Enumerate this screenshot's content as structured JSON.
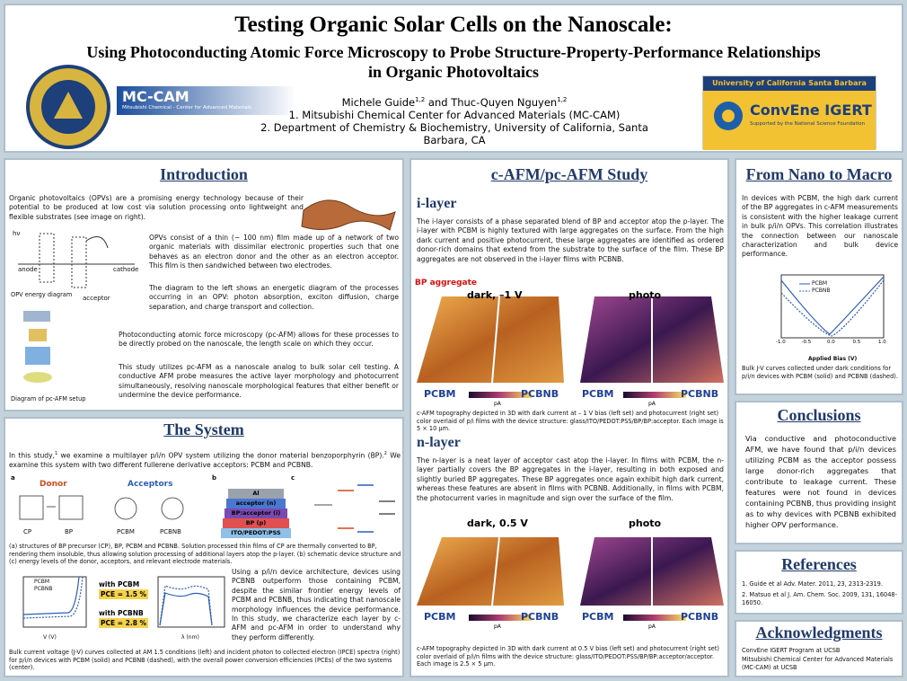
{
  "header": {
    "title": "Testing Organic Solar Cells on the Nanoscale:",
    "subtitle_1": "Using Photoconducting Atomic Force Microscopy to Probe Structure-Property-Performance Relationships",
    "subtitle_2": "in Organic Photovoltaics",
    "author_1": "Michele Guide",
    "author_1_sup": "1,2",
    "author_join": "and",
    "author_2": "Thuc-Quyen Nguyen",
    "author_2_sup": "1,2",
    "affiliation_1": "1. Mitsubishi Chemical Center for Advanced Materials (MC-CAM)",
    "affiliation_2": "2. Department of Chemistry & Biochemistry, University of California, Santa Barbara, CA",
    "mccam_logo": "MC-CAM",
    "mccam_sub": "Mitsubishi Chemical - Center for Advanced Materials",
    "ucsb_logo": "University of California Santa Barbara",
    "convene_logo": "ConvEne IGERT",
    "nsf_note": "Supported by the National Science Foundation"
  },
  "introduction": {
    "heading": "Introduction",
    "p1": "Organic photovoltaics (OPVs) are a promising energy technology because of their potential to be produced at low cost via solution processing onto lightweight and flexible substrates (see image on right).",
    "p2": "OPVs consist of a thin (~ 100 nm) film made up of a network of two organic materials with dissimilar electronic properties such that one behaves as an electron donor and the other as an electron acceptor. This film is then sandwiched between two electrodes.",
    "p3": "The diagram to the left shows an energetic diagram of the processes occurring in an OPV: photon absorption, exciton diffusion, charge separation, and charge transport and collection.",
    "p4": "Photoconducting atomic force microscopy (pc-AFM) allows for these processes to be directly probed on the nanoscale, the length scale on which they occur.",
    "p5": "This study utilizes pc-AFM as a nanoscale analog to bulk solar cell testing. A conductive AFM probe measures the active layer morphology and photocurrent simultaneously, resolving nanoscale morphological features that either benefit or undermine the device performance.",
    "label_hv": "hν",
    "label_anode": "anode",
    "label_cathode": "cathode",
    "label_acceptor": "acceptor",
    "caption_energy": "OPV energy diagram",
    "caption_setup": "Diagram of pc-AFM setup"
  },
  "system": {
    "heading": "The System",
    "p1_a": "In this study,",
    "p1_sup1": "1",
    "p1_b": " we examine a multilayer p/i/n OPV system utilizing the donor material benzoporphyrin (BP).",
    "p1_sup2": "2",
    "p1_c": " We examine this system with two different fullerene derivative acceptors: PCBM and PCBNB.",
    "panel_a": "a",
    "panel_b": "b",
    "panel_c": "c",
    "donor": "Donor",
    "acceptors": "Acceptors",
    "cp": "CP",
    "bp": "BP",
    "pcbm": "PCBM",
    "pcbnb": "PCBNB",
    "layers": [
      "Al",
      "acceptor (n)",
      "BP:acceptor (i)",
      "BP (p)",
      "ITO/PEDOT:PSS"
    ],
    "caption_1": "(a) structures of BP precursor (CP), BP, PCBM and PCBNB. Solution processed thin films of CP are thermally converted to BP, rendering them insoluble, thus allowing solution processing of additional layers atop the p-layer. (b) schematic device structure and (c) energy levels of the donor, acceptors, and relevant electrode materials.",
    "pce_pcbm_label": "with PCBM",
    "pce_pcbm": "PCE = 1.5 %",
    "pce_pcbnb_label": "with PCBNB",
    "pce_pcbnb": "PCE = 2.8 %",
    "jv_xlabel": "V (V)",
    "ipce_xlabel": "λ (nm)",
    "p2": "Using a p/i/n device architecture, devices using PCBNB outperform those containing PCBM, despite the similar frontier energy levels of PCBM and PCBNB, thus indicating that nanoscale morphology influences the device performance. In this study, we characterize each layer by c-AFM and pc-AFM in order to understand why they perform differently.",
    "caption_2": "Bulk current voltage (J-V) curves collected at AM 1.5 conditions (left) and incident photon to collected electron (IPCE) spectra (right) for p/i/n devices with PCBM (solid) and PCBNB (dashed), with the overall power conversion efficiencies (PCEs) of the two systems (center)."
  },
  "afm": {
    "heading": "c-AFM/pc-AFM Study",
    "i_heading": "i-layer",
    "i_text": "The i-layer consists of a phase separated blend of BP and acceptor atop the p-layer. The i-layer with PCBM is highly textured with large aggregates on the surface. From the high dark current and positive photocurrent, these large aggregates are identified as ordered donor-rich domains that extend from the substrate to the surface of the film. These BP aggregates are not observed in the i-layer films with PCBNB.",
    "i_aggregate": "BP aggregate",
    "i_dark": "dark, –1 V",
    "i_photo": "photo",
    "i_caption": "c-AFM topography depicted in 3D with dark current at – 1 V bias (left set) and photocurrent (right set) color overlaid of p/i films with the device structure: glass/ITO/PEDOT:PSS/BP/BP:acceptor. Each image is 5 × 10 μm.",
    "n_heading": "n-layer",
    "n_text": "The n-layer is a neat layer of acceptor cast atop the i-layer. In films with PCBM, the n-layer partially covers the BP aggregates in the i-layer, resulting in both exposed and slightly buried BP aggregates. These BP aggregates once again exhibit high dark current, whereas these features are absent in films with PCBNB. Additionally, in films with PCBM, the photocurrent varies in magnitude and sign over the surface of the film.",
    "n_dark": "dark, 0.5 V",
    "n_photo": "photo",
    "n_caption": "c-AFM topography depicted in 3D with dark current at 0.5 V bias (left set) and photocurrent (right set) color overlaid of p/i/n films with the device structure: glass/ITO/PEDOT:PSS/BP/BP:acceptor/acceptor. Each image is 2.5 × 5 μm.",
    "pcbm": "PCBM",
    "pcbnb": "PCBNB",
    "unit": "pA"
  },
  "nano_macro": {
    "heading": "From Nano to Macro",
    "text": "In devices with PCBM, the high dark current of the BP aggregates in c-AFM measurements is consistent with the higher leakage current in bulk p/i/n OPVs. This correlation illustrates the connection between our nanoscale characterization and bulk device performance.",
    "legend": [
      "PCBM",
      "PCBNB"
    ],
    "xlabel": "Applied Bias (V)",
    "xticks": [
      "-1.0",
      "-0.5",
      "0.0",
      "0.5",
      "1.0"
    ],
    "caption": "Bulk J-V curves collected under dark conditions for p/i/n devices with PCBM (solid) and PCBNB (dashed)."
  },
  "conclusions": {
    "heading": "Conclusions",
    "text": "Via conductive and photoconductive AFM, we have found that p/i/n devices utilizing PCBM as the acceptor possess large donor-rich aggregates that contribute to leakage current. These features were not found in devices containing PCBNB, thus providing insight as to why devices with PCBNB exhibited higher OPV performance."
  },
  "references": {
    "heading": "References",
    "items": [
      "1. Guide et al Adv. Mater. 2011, 23, 2313-2319.",
      "2. Matsuo et al J. Am. Chem. Soc. 2009, 131, 16048-16050."
    ]
  },
  "acknowledgments": {
    "heading": "Acknowledgments",
    "items": [
      "ConvEne IGERT Program at UCSB",
      "Mitsubishi Chemical Center for Advanced Materials (MC-CAM) at UCSB"
    ]
  }
}
